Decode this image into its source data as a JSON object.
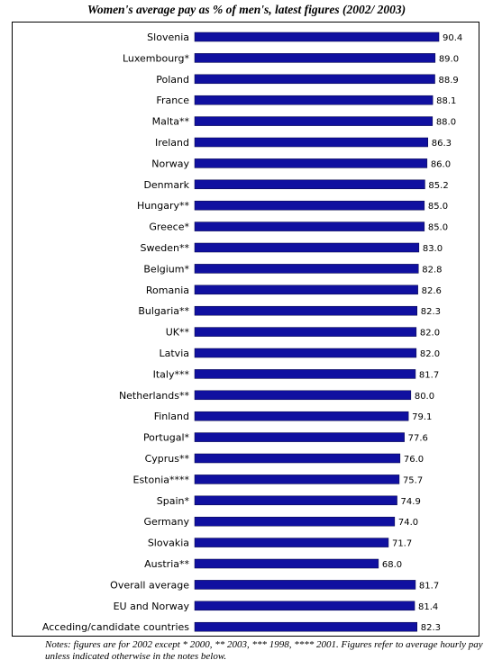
{
  "chart_data": {
    "type": "bar",
    "orientation": "horizontal",
    "title": "Women's average pay as % of men's, latest figures (2002/ 2003)",
    "categories": [
      "Slovenia",
      "Luxembourg*",
      "Poland",
      "France",
      "Malta**",
      "Ireland",
      "Norway",
      "Denmark",
      "Hungary**",
      "Greece*",
      "Sweden**",
      "Belgium*",
      "Romania",
      "Bulgaria**",
      "UK**",
      "Latvia",
      "Italy***",
      "Netherlands**",
      "Finland",
      "Portugal*",
      "Cyprus**",
      "Estonia****",
      "Spain*",
      "Germany",
      "Slovakia",
      "Austria**",
      "Overall average",
      "EU and Norway",
      "Acceding/candidate countries"
    ],
    "values": [
      90.4,
      89.0,
      88.9,
      88.1,
      88.0,
      86.3,
      86.0,
      85.2,
      85.0,
      85.0,
      83.0,
      82.8,
      82.6,
      82.3,
      82.0,
      82.0,
      81.7,
      80.0,
      79.1,
      77.6,
      76.0,
      75.7,
      74.9,
      74.0,
      71.7,
      68.0,
      81.7,
      81.4,
      82.3
    ],
    "value_labels": [
      "90.4",
      "89.0",
      "88.9",
      "88.1",
      "88.0",
      "86.3",
      "86.0",
      "85.2",
      "85.0",
      "85.0",
      "83.0",
      "82.8",
      "82.6",
      "82.3",
      "82.0",
      "82.0",
      "81.7",
      "80.0",
      "79.1",
      "77.6",
      "76.0",
      "75.7",
      "74.9",
      "74.0",
      "71.7",
      "68.0",
      "81.7",
      "81.4",
      "82.3"
    ],
    "xlim": [
      0,
      100
    ],
    "bar_color": "#1010a0",
    "grid": false,
    "legend": "none"
  },
  "notes": "Notes: figures are for 2002 except * 2000, ** 2003, *** 1998, **** 2001. Figures refer to average hourly pay unless indicated otherwise in the notes below."
}
